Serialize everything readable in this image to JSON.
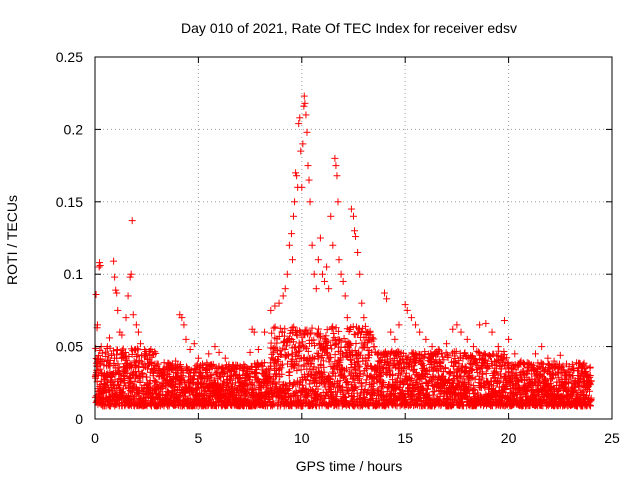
{
  "chart_data": {
    "type": "scatter",
    "title": "Day 010 of 2021, Rate Of TEC Index for receiver edsv",
    "xlabel": "GPS time / hours",
    "ylabel": "ROTI / TECUs",
    "xlim": [
      0,
      25
    ],
    "ylim": [
      0,
      0.25
    ],
    "x_ticks": [
      0,
      5,
      10,
      15,
      20,
      25
    ],
    "x_tick_labels": [
      "0",
      "5",
      "10",
      "15",
      "20",
      "25"
    ],
    "y_ticks": [
      0,
      0.05,
      0.1,
      0.15,
      0.2,
      0.25
    ],
    "y_tick_labels": [
      "0",
      "0.05",
      "0.1",
      "0.15",
      "0.2",
      "0.25"
    ],
    "grid": true,
    "marker": "+",
    "color": "#ff0000",
    "series": [
      {
        "name": "ROTI",
        "points": [
          [
            0.05,
            0.086
          ],
          [
            0.1,
            0.063
          ],
          [
            0.12,
            0.065
          ],
          [
            0.15,
            0.03
          ],
          [
            0.2,
            0.105
          ],
          [
            0.22,
            0.108
          ],
          [
            0.25,
            0.106
          ],
          [
            0.3,
            0.05
          ],
          [
            0.35,
            0.04
          ],
          [
            0.45,
            0.03
          ],
          [
            0.6,
            0.05
          ],
          [
            0.7,
            0.056
          ],
          [
            0.8,
            0.045
          ],
          [
            0.9,
            0.109
          ],
          [
            0.95,
            0.098
          ],
          [
            1.0,
            0.089
          ],
          [
            1.05,
            0.087
          ],
          [
            1.1,
            0.075
          ],
          [
            1.2,
            0.06
          ],
          [
            1.3,
            0.058
          ],
          [
            1.5,
            0.07
          ],
          [
            1.6,
            0.085
          ],
          [
            1.7,
            0.098
          ],
          [
            1.75,
            0.1
          ],
          [
            1.8,
            0.137
          ],
          [
            1.85,
            0.072
          ],
          [
            2.0,
            0.065
          ],
          [
            2.1,
            0.06
          ],
          [
            2.2,
            0.052
          ],
          [
            2.4,
            0.048
          ],
          [
            2.5,
            0.045
          ],
          [
            2.7,
            0.048
          ],
          [
            3.0,
            0.038
          ],
          [
            3.3,
            0.03
          ],
          [
            3.6,
            0.035
          ],
          [
            3.9,
            0.04
          ],
          [
            4.1,
            0.072
          ],
          [
            4.2,
            0.07
          ],
          [
            4.3,
            0.065
          ],
          [
            4.4,
            0.055
          ],
          [
            4.6,
            0.048
          ],
          [
            4.8,
            0.052
          ],
          [
            5.0,
            0.042
          ],
          [
            5.2,
            0.038
          ],
          [
            5.5,
            0.045
          ],
          [
            5.8,
            0.05
          ],
          [
            6.0,
            0.046
          ],
          [
            6.3,
            0.042
          ],
          [
            6.5,
            0.035
          ],
          [
            6.8,
            0.03
          ],
          [
            7.0,
            0.028
          ],
          [
            7.3,
            0.03
          ],
          [
            7.5,
            0.046
          ],
          [
            7.6,
            0.062
          ],
          [
            7.7,
            0.06
          ],
          [
            7.9,
            0.048
          ],
          [
            8.2,
            0.06
          ],
          [
            8.5,
            0.075
          ],
          [
            8.7,
            0.078
          ],
          [
            8.9,
            0.08
          ],
          [
            9.1,
            0.085
          ],
          [
            9.2,
            0.09
          ],
          [
            9.3,
            0.1
          ],
          [
            9.4,
            0.12
          ],
          [
            9.5,
            0.128
          ],
          [
            9.55,
            0.11
          ],
          [
            9.6,
            0.14
          ],
          [
            9.65,
            0.15
          ],
          [
            9.7,
            0.17
          ],
          [
            9.75,
            0.168
          ],
          [
            9.8,
            0.16
          ],
          [
            9.85,
            0.204
          ],
          [
            9.9,
            0.208
          ],
          [
            9.95,
            0.185
          ],
          [
            10.0,
            0.16
          ],
          [
            10.05,
            0.19
          ],
          [
            10.1,
            0.216
          ],
          [
            10.12,
            0.223
          ],
          [
            10.15,
            0.218
          ],
          [
            10.2,
            0.21
          ],
          [
            10.25,
            0.198
          ],
          [
            10.3,
            0.175
          ],
          [
            10.35,
            0.165
          ],
          [
            10.4,
            0.15
          ],
          [
            10.5,
            0.12
          ],
          [
            10.6,
            0.1
          ],
          [
            10.7,
            0.09
          ],
          [
            10.8,
            0.11
          ],
          [
            10.9,
            0.125
          ],
          [
            11.0,
            0.1
          ],
          [
            11.1,
            0.095
          ],
          [
            11.2,
            0.105
          ],
          [
            11.3,
            0.09
          ],
          [
            11.4,
            0.14
          ],
          [
            11.5,
            0.12
          ],
          [
            11.6,
            0.18
          ],
          [
            11.65,
            0.175
          ],
          [
            11.7,
            0.168
          ],
          [
            11.75,
            0.15
          ],
          [
            11.8,
            0.11
          ],
          [
            11.9,
            0.1
          ],
          [
            12.0,
            0.095
          ],
          [
            12.1,
            0.085
          ],
          [
            12.2,
            0.07
          ],
          [
            12.4,
            0.145
          ],
          [
            12.5,
            0.14
          ],
          [
            12.55,
            0.13
          ],
          [
            12.6,
            0.126
          ],
          [
            12.7,
            0.115
          ],
          [
            12.8,
            0.1
          ],
          [
            12.9,
            0.08
          ],
          [
            13.0,
            0.07
          ],
          [
            13.2,
            0.06
          ],
          [
            13.5,
            0.05
          ],
          [
            13.7,
            0.04
          ],
          [
            14.0,
            0.087
          ],
          [
            14.1,
            0.083
          ],
          [
            14.3,
            0.06
          ],
          [
            14.5,
            0.055
          ],
          [
            14.7,
            0.065
          ],
          [
            15.0,
            0.079
          ],
          [
            15.1,
            0.075
          ],
          [
            15.3,
            0.07
          ],
          [
            15.5,
            0.065
          ],
          [
            15.7,
            0.06
          ],
          [
            16.0,
            0.055
          ],
          [
            16.3,
            0.05
          ],
          [
            16.6,
            0.048
          ],
          [
            17.0,
            0.052
          ],
          [
            17.3,
            0.062
          ],
          [
            17.5,
            0.065
          ],
          [
            17.7,
            0.06
          ],
          [
            18.0,
            0.055
          ],
          [
            18.3,
            0.05
          ],
          [
            18.6,
            0.065
          ],
          [
            18.9,
            0.066
          ],
          [
            19.2,
            0.06
          ],
          [
            19.5,
            0.05
          ],
          [
            19.8,
            0.068
          ],
          [
            20.0,
            0.055
          ],
          [
            20.3,
            0.045
          ],
          [
            20.6,
            0.04
          ],
          [
            21.0,
            0.038
          ],
          [
            21.3,
            0.045
          ],
          [
            21.6,
            0.05
          ],
          [
            21.9,
            0.042
          ],
          [
            22.2,
            0.04
          ],
          [
            22.5,
            0.044
          ],
          [
            22.8,
            0.038
          ],
          [
            23.1,
            0.03
          ],
          [
            23.4,
            0.028
          ],
          [
            23.7,
            0.032
          ],
          [
            23.95,
            0.03
          ]
        ]
      }
    ]
  }
}
